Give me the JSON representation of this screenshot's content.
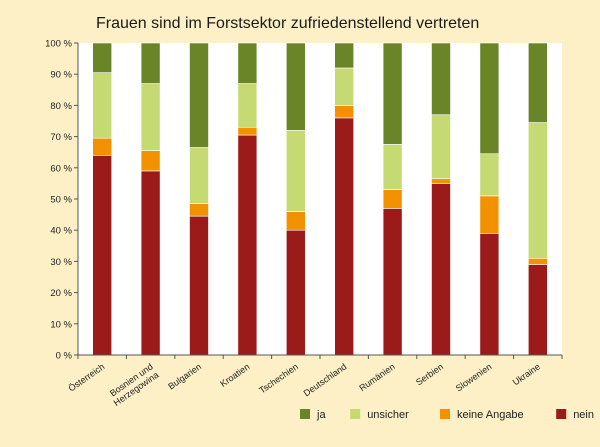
{
  "chart_data": {
    "type": "bar",
    "stacked": true,
    "title": "Frauen sind im Forstsektor zufriedenstellend vertreten",
    "xlabel": "",
    "ylabel": "",
    "ylim": [
      0,
      100
    ],
    "ytick_labels": [
      "0 %",
      "10 %",
      "20 %",
      "30 %",
      "40 %",
      "50 %",
      "60 %",
      "70 %",
      "80 %",
      "90 %",
      "100 %"
    ],
    "grid": false,
    "legend_position": "bottom-right",
    "categories": [
      [
        "Österreich"
      ],
      [
        "Bosnien und",
        "Herzegowina"
      ],
      [
        "Bulgarien"
      ],
      [
        "Kroatien"
      ],
      [
        "Tschechien"
      ],
      [
        "Deutschland"
      ],
      [
        "Rumänien"
      ],
      [
        "Serbien"
      ],
      [
        "Slowenien"
      ],
      [
        "Ukraine"
      ]
    ],
    "series": [
      {
        "name": "nein",
        "color": "#9B1B1B",
        "values": [
          64,
          59,
          44.5,
          70.5,
          40,
          76,
          47,
          55,
          39,
          29
        ]
      },
      {
        "name": "keine Angabe",
        "color": "#F39200",
        "values": [
          5.5,
          6.5,
          4,
          2.5,
          6,
          4,
          6,
          1.5,
          12,
          2
        ]
      },
      {
        "name": "unsicher",
        "color": "#C5DA72",
        "values": [
          21,
          21.5,
          18,
          14,
          26,
          12,
          14.5,
          20.5,
          13.5,
          43.5
        ]
      },
      {
        "name": "ja",
        "color": "#6A8527",
        "values": [
          9.5,
          13,
          33.5,
          13,
          28,
          8,
          32.5,
          23,
          35.5,
          25.5
        ]
      }
    ],
    "legend_order": [
      "ja",
      "unsicher",
      "keine Angabe",
      "nein"
    ]
  }
}
